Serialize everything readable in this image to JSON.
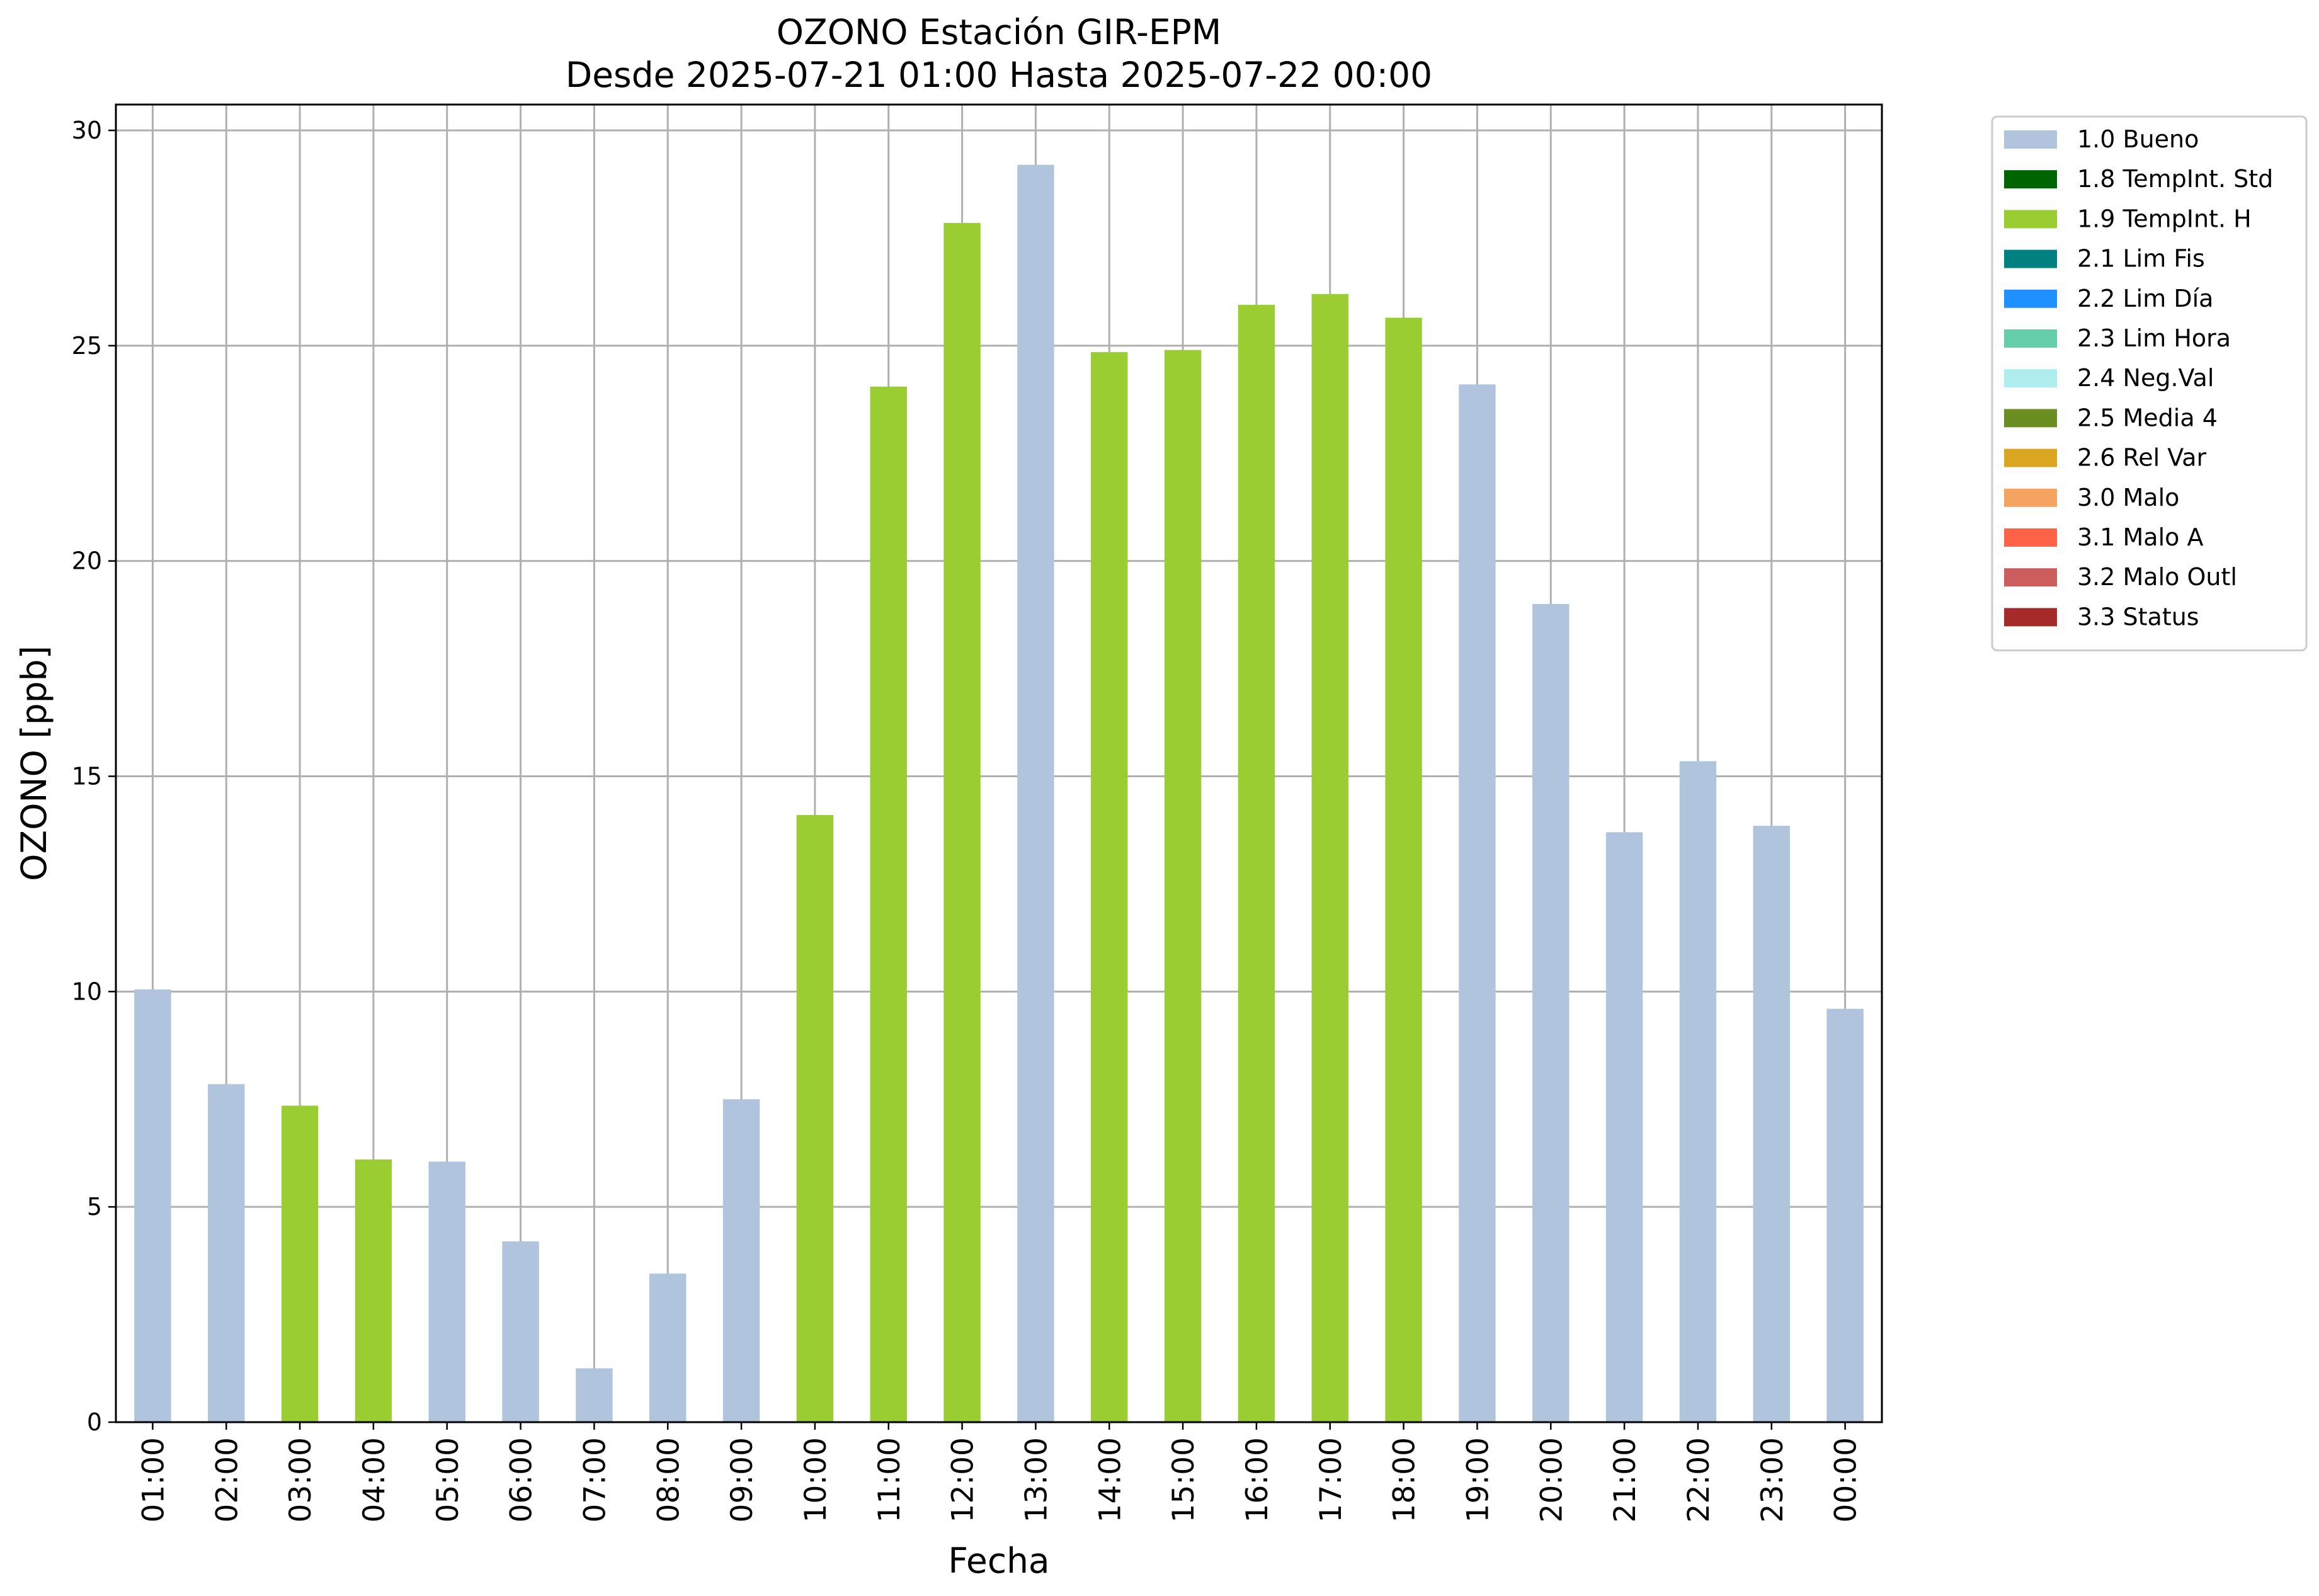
{
  "chart_data": {
    "type": "bar",
    "title": "OZONO Estación GIR-EPM",
    "subtitle": "Desde 2025-07-21 01:00 Hasta 2025-07-22 00:00",
    "xlabel": "Fecha",
    "ylabel": "OZONO [ppb]",
    "ylim": [
      0,
      30.6
    ],
    "yticks": [
      0,
      5,
      10,
      15,
      20,
      25,
      30
    ],
    "grid": true,
    "legend_position": "outside-top-right",
    "categories": [
      "01:00",
      "02:00",
      "03:00",
      "04:00",
      "05:00",
      "06:00",
      "07:00",
      "08:00",
      "09:00",
      "10:00",
      "11:00",
      "12:00",
      "13:00",
      "14:00",
      "15:00",
      "16:00",
      "17:00",
      "18:00",
      "19:00",
      "20:00",
      "21:00",
      "22:00",
      "23:00",
      "00:00"
    ],
    "values": [
      10.05,
      7.85,
      7.35,
      6.1,
      6.05,
      4.2,
      1.25,
      3.45,
      7.5,
      14.1,
      24.05,
      27.85,
      29.2,
      24.85,
      24.9,
      25.95,
      26.2,
      25.65,
      24.1,
      19.0,
      13.7,
      15.35,
      13.85,
      9.6
    ],
    "flags": [
      "1.0 Bueno",
      "1.0 Bueno",
      "1.9 TempInt. H",
      "1.9 TempInt. H",
      "1.0 Bueno",
      "1.0 Bueno",
      "1.0 Bueno",
      "1.0 Bueno",
      "1.0 Bueno",
      "1.9 TempInt. H",
      "1.9 TempInt. H",
      "1.9 TempInt. H",
      "1.0 Bueno",
      "1.9 TempInt. H",
      "1.9 TempInt. H",
      "1.9 TempInt. H",
      "1.9 TempInt. H",
      "1.9 TempInt. H",
      "1.0 Bueno",
      "1.0 Bueno",
      "1.0 Bueno",
      "1.0 Bueno",
      "1.0 Bueno",
      "1.0 Bueno"
    ],
    "legend": [
      {
        "label": "1.0 Bueno",
        "color": "#b0c4de"
      },
      {
        "label": "1.8 TempInt. Std",
        "color": "#006400"
      },
      {
        "label": "1.9 TempInt. H",
        "color": "#9acd32"
      },
      {
        "label": "2.1 Lim Fis",
        "color": "#008080"
      },
      {
        "label": "2.2 Lim Día",
        "color": "#1e90ff"
      },
      {
        "label": "2.3 Lim Hora",
        "color": "#66cdaa"
      },
      {
        "label": "2.4 Neg.Val",
        "color": "#afeeee"
      },
      {
        "label": "2.5 Media 4",
        "color": "#6b8e23"
      },
      {
        "label": "2.6 Rel Var",
        "color": "#daa520"
      },
      {
        "label": "3.0 Malo",
        "color": "#f4a460"
      },
      {
        "label": "3.1 Malo A",
        "color": "#ff6347"
      },
      {
        "label": "3.2 Malo Outl",
        "color": "#cd5c5c"
      },
      {
        "label": "3.3 Status",
        "color": "#a52a2a"
      }
    ]
  }
}
